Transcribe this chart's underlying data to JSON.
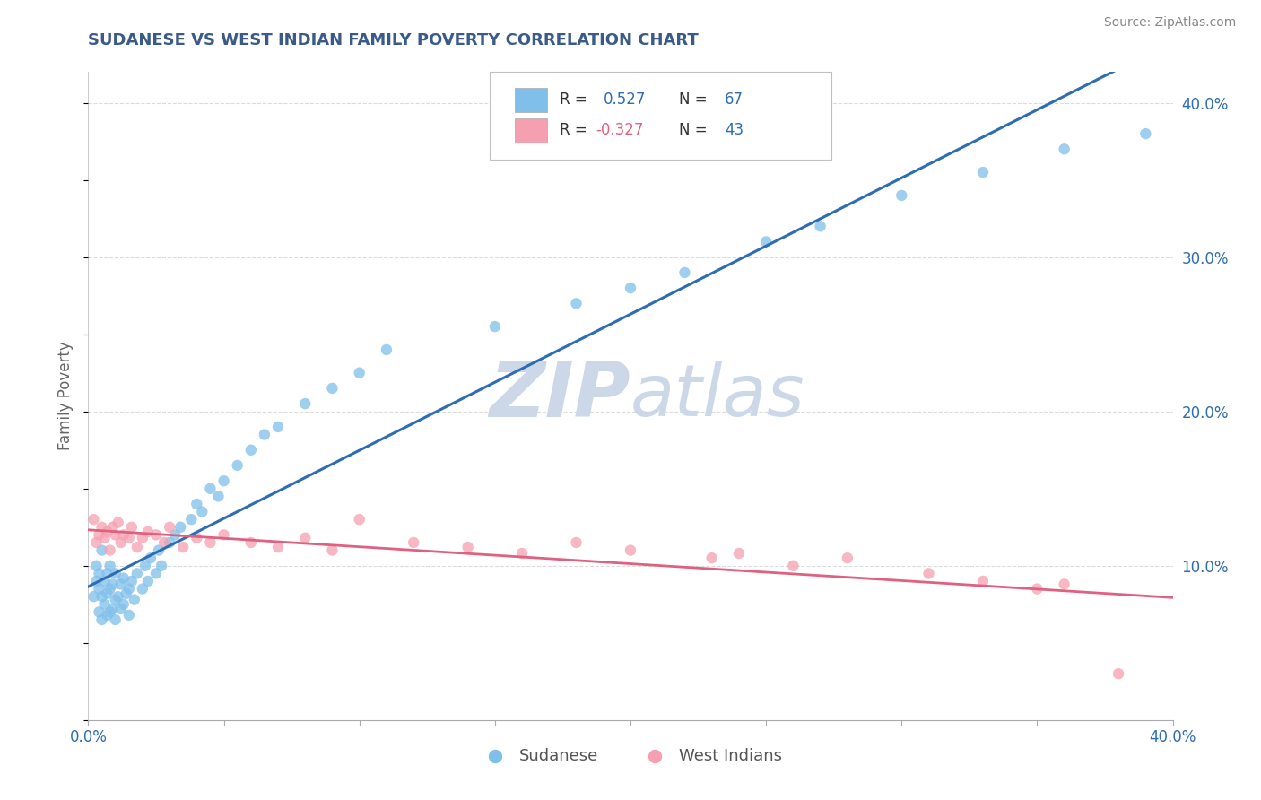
{
  "title": "SUDANESE VS WEST INDIAN FAMILY POVERTY CORRELATION CHART",
  "title_color": "#3a5a8a",
  "source_text": "Source: ZipAtlas.com",
  "ylabel": "Family Poverty",
  "xlim": [
    0.0,
    0.4
  ],
  "ylim": [
    0.0,
    0.42
  ],
  "blue_color": "#7fbfea",
  "pink_color": "#f5a0b0",
  "blue_line_color": "#2e6db4",
  "pink_line_color": "#e06080",
  "watermark_zip": "ZIP",
  "watermark_atlas": "atlas",
  "watermark_color": "#ccd8e8",
  "blue_R": 0.527,
  "blue_N": 67,
  "pink_R": -0.327,
  "pink_N": 43,
  "background_color": "#ffffff",
  "grid_color": "#cccccc",
  "sudanese_x": [
    0.002,
    0.003,
    0.003,
    0.004,
    0.004,
    0.004,
    0.005,
    0.005,
    0.005,
    0.006,
    0.006,
    0.007,
    0.007,
    0.007,
    0.008,
    0.008,
    0.008,
    0.009,
    0.009,
    0.01,
    0.01,
    0.01,
    0.011,
    0.012,
    0.012,
    0.013,
    0.013,
    0.014,
    0.015,
    0.015,
    0.016,
    0.017,
    0.018,
    0.02,
    0.021,
    0.022,
    0.023,
    0.025,
    0.026,
    0.027,
    0.03,
    0.032,
    0.034,
    0.038,
    0.04,
    0.042,
    0.045,
    0.048,
    0.05,
    0.055,
    0.06,
    0.065,
    0.07,
    0.08,
    0.09,
    0.1,
    0.11,
    0.15,
    0.18,
    0.2,
    0.22,
    0.25,
    0.27,
    0.3,
    0.33,
    0.36,
    0.39
  ],
  "sudanese_y": [
    0.08,
    0.09,
    0.1,
    0.07,
    0.085,
    0.095,
    0.065,
    0.08,
    0.11,
    0.075,
    0.09,
    0.068,
    0.082,
    0.095,
    0.07,
    0.085,
    0.1,
    0.072,
    0.088,
    0.065,
    0.078,
    0.095,
    0.08,
    0.072,
    0.088,
    0.075,
    0.092,
    0.082,
    0.068,
    0.085,
    0.09,
    0.078,
    0.095,
    0.085,
    0.1,
    0.09,
    0.105,
    0.095,
    0.11,
    0.1,
    0.115,
    0.12,
    0.125,
    0.13,
    0.14,
    0.135,
    0.15,
    0.145,
    0.155,
    0.165,
    0.175,
    0.185,
    0.19,
    0.205,
    0.215,
    0.225,
    0.24,
    0.255,
    0.27,
    0.28,
    0.29,
    0.31,
    0.32,
    0.34,
    0.355,
    0.37,
    0.38
  ],
  "westindian_x": [
    0.002,
    0.003,
    0.004,
    0.005,
    0.006,
    0.007,
    0.008,
    0.009,
    0.01,
    0.011,
    0.012,
    0.013,
    0.015,
    0.016,
    0.018,
    0.02,
    0.022,
    0.025,
    0.028,
    0.03,
    0.035,
    0.04,
    0.045,
    0.05,
    0.06,
    0.07,
    0.08,
    0.09,
    0.1,
    0.12,
    0.14,
    0.16,
    0.18,
    0.2,
    0.23,
    0.24,
    0.26,
    0.28,
    0.31,
    0.33,
    0.35,
    0.36,
    0.38
  ],
  "westindian_y": [
    0.13,
    0.115,
    0.12,
    0.125,
    0.118,
    0.122,
    0.11,
    0.125,
    0.12,
    0.128,
    0.115,
    0.12,
    0.118,
    0.125,
    0.112,
    0.118,
    0.122,
    0.12,
    0.115,
    0.125,
    0.112,
    0.118,
    0.115,
    0.12,
    0.115,
    0.112,
    0.118,
    0.11,
    0.13,
    0.115,
    0.112,
    0.108,
    0.115,
    0.11,
    0.105,
    0.108,
    0.1,
    0.105,
    0.095,
    0.09,
    0.085,
    0.088,
    0.03
  ]
}
